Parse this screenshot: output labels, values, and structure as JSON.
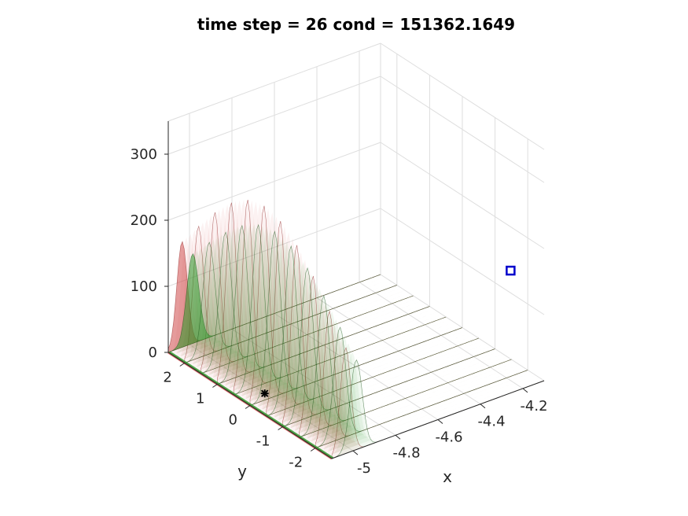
{
  "chart_data": {
    "type": "surface",
    "title": "time step = 26 cond = 151362.1649",
    "xlabel": "x",
    "ylabel": "y",
    "zlabel": "",
    "xlim": [
      -5.1,
      -4.1
    ],
    "ylim": [
      -2.5,
      2.5
    ],
    "zlim": [
      0,
      350
    ],
    "xticks": [
      -5,
      -4.8,
      -4.6,
      -4.4,
      -4.2
    ],
    "xtick_labels": [
      "-5",
      "-4.8",
      "-4.6",
      "-4.4",
      "-4.2"
    ],
    "yticks": [
      2,
      1,
      0,
      -1,
      -2
    ],
    "ytick_labels": [
      "2",
      "1",
      "0",
      "-1",
      "-2"
    ],
    "zticks": [
      0,
      100,
      200,
      300
    ],
    "ztick_labels": [
      "0",
      "100",
      "200",
      "300"
    ],
    "grid": true,
    "series": [
      {
        "color": "#d04848",
        "peak_x": -5.035,
        "peak_z": 295,
        "width": 0.035,
        "edge_color": "#8b1a1a"
      },
      {
        "color": "#2a9a2a",
        "peak_x": -4.985,
        "peak_z": 250,
        "width": 0.04,
        "edge_color": "#145214"
      }
    ],
    "markers": [
      {
        "name": "blue-square-marker",
        "x": -4.15,
        "y": -1.8,
        "z": 150,
        "color": "#0000cc"
      },
      {
        "name": "black-star-marker",
        "x": -5.0,
        "y": 0.2,
        "z": 0,
        "color": "#000000"
      }
    ]
  }
}
